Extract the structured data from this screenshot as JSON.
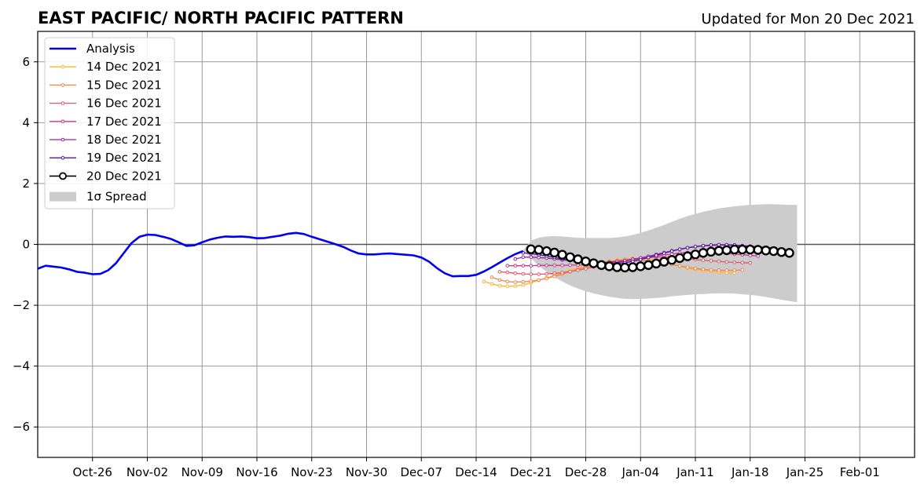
{
  "chart_data": {
    "type": "line",
    "title": "EAST PACIFIC/ NORTH PACIFIC PATTERN",
    "subtitle": "Updated for Mon 20 Dec 2021",
    "xlabel": "",
    "ylabel": "",
    "xlim": [
      "2021-10-19",
      "2022-02-08"
    ],
    "ylim": [
      -7,
      7
    ],
    "x_ticks": [
      "Oct-26",
      "Nov-02",
      "Nov-09",
      "Nov-16",
      "Nov-23",
      "Nov-30",
      "Dec-07",
      "Dec-14",
      "Dec-21",
      "Dec-28",
      "Jan-04",
      "Jan-11",
      "Jan-18",
      "Jan-25",
      "Feb-01"
    ],
    "x_tick_dates": [
      "2021-10-26",
      "2021-11-02",
      "2021-11-09",
      "2021-11-16",
      "2021-11-23",
      "2021-11-30",
      "2021-12-07",
      "2021-12-14",
      "2021-12-21",
      "2021-12-28",
      "2022-01-04",
      "2022-01-11",
      "2022-01-18",
      "2022-01-25",
      "2022-02-01"
    ],
    "y_ticks": [
      -6,
      -4,
      -2,
      0,
      2,
      4,
      6
    ],
    "grid": true,
    "legend_position": "top-left",
    "zero_line": true,
    "analysis": {
      "name": "Analysis",
      "color": "#0000ee",
      "x": [
        "2021-10-19",
        "2021-10-20",
        "2021-10-21",
        "2021-10-22",
        "2021-10-23",
        "2021-10-24",
        "2021-10-25",
        "2021-10-26",
        "2021-10-27",
        "2021-10-28",
        "2021-10-29",
        "2021-10-30",
        "2021-10-31",
        "2021-11-01",
        "2021-11-02",
        "2021-11-03",
        "2021-11-04",
        "2021-11-05",
        "2021-11-06",
        "2021-11-07",
        "2021-11-08",
        "2021-11-09",
        "2021-11-10",
        "2021-11-11",
        "2021-11-12",
        "2021-11-13",
        "2021-11-14",
        "2021-11-15",
        "2021-11-16",
        "2021-11-17",
        "2021-11-18",
        "2021-11-19",
        "2021-11-20",
        "2021-11-21",
        "2021-11-22",
        "2021-11-23",
        "2021-11-24",
        "2021-11-25",
        "2021-11-26",
        "2021-11-27",
        "2021-11-28",
        "2021-11-29",
        "2021-11-30",
        "2021-12-01",
        "2021-12-02",
        "2021-12-03",
        "2021-12-04",
        "2021-12-05",
        "2021-12-06",
        "2021-12-07",
        "2021-12-08",
        "2021-12-09",
        "2021-12-10",
        "2021-12-11",
        "2021-12-12",
        "2021-12-13",
        "2021-12-14",
        "2021-12-15",
        "2021-12-16",
        "2021-12-17",
        "2021-12-18",
        "2021-12-19",
        "2021-12-20"
      ],
      "values": [
        -0.8,
        -0.7,
        -0.73,
        -0.76,
        -0.82,
        -0.9,
        -0.93,
        -0.98,
        -0.97,
        -0.85,
        -0.62,
        -0.28,
        0.05,
        0.25,
        0.32,
        0.31,
        0.25,
        0.18,
        0.07,
        -0.05,
        -0.03,
        0.07,
        0.16,
        0.22,
        0.26,
        0.25,
        0.26,
        0.24,
        0.2,
        0.21,
        0.25,
        0.29,
        0.35,
        0.38,
        0.34,
        0.25,
        0.17,
        0.09,
        0.01,
        -0.08,
        -0.2,
        -0.3,
        -0.33,
        -0.33,
        -0.31,
        -0.3,
        -0.32,
        -0.34,
        -0.36,
        -0.43,
        -0.57,
        -0.78,
        -0.95,
        -1.05,
        -1.04,
        -1.04,
        -1.0,
        -0.89,
        -0.75,
        -0.6,
        -0.45,
        -0.32,
        -0.22
      ]
    },
    "spread": {
      "name": "1σ Spread",
      "color": "#cccccc",
      "x": [
        "2021-12-20",
        "2021-12-21",
        "2021-12-22",
        "2021-12-23",
        "2021-12-24",
        "2021-12-25",
        "2021-12-26",
        "2021-12-27",
        "2021-12-28",
        "2021-12-29",
        "2021-12-30",
        "2021-12-31",
        "2022-01-01",
        "2022-01-02",
        "2022-01-03",
        "2022-01-04",
        "2022-01-05",
        "2022-01-06",
        "2022-01-07",
        "2022-01-08",
        "2022-01-09",
        "2022-01-10",
        "2022-01-11",
        "2022-01-12",
        "2022-01-13",
        "2022-01-14",
        "2022-01-15",
        "2022-01-16",
        "2022-01-17",
        "2022-01-18",
        "2022-01-19",
        "2022-01-20",
        "2022-01-21",
        "2022-01-22",
        "2022-01-23",
        "2022-01-24"
      ],
      "upper": [
        -0.2,
        0.12,
        0.22,
        0.26,
        0.27,
        0.26,
        0.24,
        0.22,
        0.21,
        0.21,
        0.21,
        0.21,
        0.23,
        0.26,
        0.31,
        0.38,
        0.46,
        0.55,
        0.64,
        0.74,
        0.84,
        0.93,
        1.0,
        1.07,
        1.13,
        1.18,
        1.22,
        1.25,
        1.28,
        1.3,
        1.31,
        1.32,
        1.32,
        1.31,
        1.3,
        1.3
      ],
      "lower": [
        -0.2,
        -0.45,
        -0.7,
        -0.9,
        -1.08,
        -1.22,
        -1.35,
        -1.45,
        -1.54,
        -1.61,
        -1.67,
        -1.72,
        -1.76,
        -1.79,
        -1.8,
        -1.79,
        -1.78,
        -1.76,
        -1.74,
        -1.71,
        -1.68,
        -1.66,
        -1.64,
        -1.63,
        -1.62,
        -1.61,
        -1.61,
        -1.62,
        -1.64,
        -1.66,
        -1.69,
        -1.73,
        -1.77,
        -1.82,
        -1.86,
        -1.9
      ]
    },
    "series": [
      {
        "name": "14 Dec 2021",
        "color": "#fbb32f",
        "start": "2021-12-15",
        "values": [
          -1.22,
          -1.3,
          -1.36,
          -1.38,
          -1.37,
          -1.33,
          -1.26,
          -1.18,
          -1.1,
          -1.02,
          -0.93,
          -0.85,
          -0.77,
          -0.7,
          -0.64,
          -0.59,
          -0.55,
          -0.51,
          -0.48,
          -0.46,
          -0.46,
          -0.48,
          -0.52,
          -0.58,
          -0.65,
          -0.72,
          -0.78,
          -0.82,
          -0.86,
          -0.88,
          -0.91,
          -0.93,
          -0.94
        ]
      },
      {
        "name": "15 Dec 2021",
        "color": "#f1844b",
        "start": "2021-12-16",
        "values": [
          -1.08,
          -1.17,
          -1.22,
          -1.24,
          -1.23,
          -1.21,
          -1.17,
          -1.12,
          -1.05,
          -0.98,
          -0.9,
          -0.82,
          -0.75,
          -0.68,
          -0.62,
          -0.57,
          -0.54,
          -0.52,
          -0.51,
          -0.52,
          -0.54,
          -0.57,
          -0.61,
          -0.66,
          -0.71,
          -0.75,
          -0.79,
          -0.82,
          -0.84,
          -0.85,
          -0.85,
          -0.85,
          -0.84
        ]
      },
      {
        "name": "16 Dec 2021",
        "color": "#e0566a",
        "start": "2021-12-17",
        "values": [
          -0.9,
          -0.92,
          -0.95,
          -0.97,
          -0.98,
          -0.98,
          -0.97,
          -0.95,
          -0.93,
          -0.89,
          -0.85,
          -0.8,
          -0.74,
          -0.68,
          -0.62,
          -0.57,
          -0.52,
          -0.48,
          -0.45,
          -0.43,
          -0.42,
          -0.42,
          -0.43,
          -0.45,
          -0.47,
          -0.5,
          -0.52,
          -0.54,
          -0.56,
          -0.58,
          -0.59,
          -0.6,
          -0.61
        ]
      },
      {
        "name": "17 Dec 2021",
        "color": "#c13a8b",
        "start": "2021-12-18",
        "values": [
          -0.7,
          -0.7,
          -0.7,
          -0.7,
          -0.69,
          -0.69,
          -0.69,
          -0.69,
          -0.68,
          -0.68,
          -0.67,
          -0.66,
          -0.64,
          -0.62,
          -0.59,
          -0.55,
          -0.51,
          -0.47,
          -0.43,
          -0.39,
          -0.35,
          -0.32,
          -0.29,
          -0.27,
          -0.26,
          -0.26,
          -0.27,
          -0.28,
          -0.3,
          -0.32,
          -0.34,
          -0.36,
          -0.38
        ]
      },
      {
        "name": "18 Dec 2021",
        "color": "#9626a0",
        "start": "2021-12-19",
        "values": [
          -0.48,
          -0.42,
          -0.42,
          -0.43,
          -0.45,
          -0.48,
          -0.51,
          -0.53,
          -0.55,
          -0.57,
          -0.58,
          -0.59,
          -0.58,
          -0.56,
          -0.53,
          -0.49,
          -0.44,
          -0.39,
          -0.33,
          -0.27,
          -0.21,
          -0.16,
          -0.11,
          -0.08,
          -0.05,
          -0.03,
          -0.02,
          -0.02,
          -0.03,
          -0.05,
          -0.08,
          -0.11,
          -0.14
        ]
      },
      {
        "name": "19 Dec 2021",
        "color": "#5a12a0",
        "start": "2021-12-20",
        "values": [
          -0.28,
          -0.3,
          -0.34,
          -0.38,
          -0.43,
          -0.48,
          -0.53,
          -0.57,
          -0.6,
          -0.62,
          -0.63,
          -0.63,
          -0.62,
          -0.6,
          -0.56,
          -0.5,
          -0.43,
          -0.36,
          -0.29,
          -0.22,
          -0.16,
          -0.11,
          -0.07,
          -0.04,
          -0.02,
          -0.01,
          -0.01,
          -0.02,
          -0.04,
          -0.06,
          -0.08,
          -0.1,
          -0.12
        ]
      },
      {
        "name": "20 Dec 2021",
        "color": "#000000",
        "start": "2021-12-21",
        "values": [
          -0.16,
          -0.18,
          -0.22,
          -0.27,
          -0.34,
          -0.42,
          -0.49,
          -0.56,
          -0.62,
          -0.68,
          -0.72,
          -0.75,
          -0.76,
          -0.75,
          -0.72,
          -0.68,
          -0.63,
          -0.57,
          -0.51,
          -0.45,
          -0.39,
          -0.33,
          -0.28,
          -0.24,
          -0.21,
          -0.19,
          -0.17,
          -0.17,
          -0.17,
          -0.18,
          -0.2,
          -0.22,
          -0.25,
          -0.28
        ]
      }
    ]
  }
}
